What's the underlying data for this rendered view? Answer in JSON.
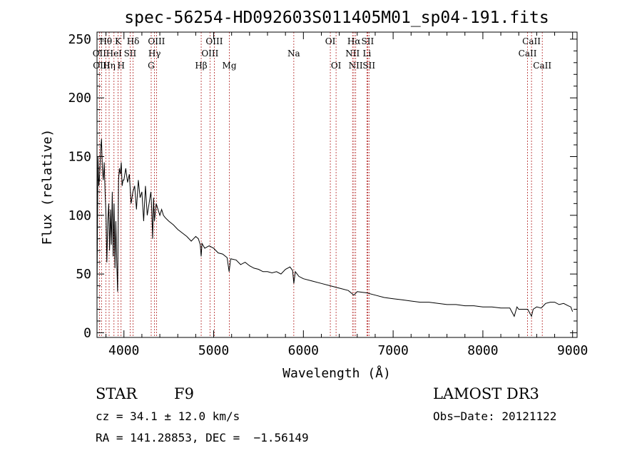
{
  "chart_data": {
    "type": "line",
    "title": "spec-56254-HD092603S011405M01_sp04-191.fits",
    "xlabel": "Wavelength (Å)",
    "ylabel": "Flux (relative)",
    "xlim": [
      3700,
      9050
    ],
    "ylim": [
      -4,
      256
    ],
    "x_ticks": [
      4000,
      5000,
      6000,
      7000,
      8000,
      9000
    ],
    "y_ticks": [
      0,
      50,
      100,
      150,
      200,
      250
    ],
    "x_tick_labels": [
      "4000",
      "5000",
      "6000",
      "7000",
      "8000",
      "9000"
    ],
    "y_tick_labels": [
      "0",
      "50",
      "100",
      "150",
      "200",
      "250"
    ],
    "line_color": "#000000",
    "marker_color": "#b22222",
    "series": [
      {
        "name": "spectrum",
        "x": [
          3700,
          3710,
          3720,
          3730,
          3740,
          3750,
          3760,
          3770,
          3780,
          3790,
          3800,
          3810,
          3820,
          3830,
          3840,
          3850,
          3860,
          3870,
          3880,
          3890,
          3900,
          3910,
          3920,
          3930,
          3940,
          3950,
          3960,
          3970,
          3980,
          3990,
          4000,
          4020,
          4040,
          4060,
          4080,
          4100,
          4120,
          4140,
          4160,
          4180,
          4200,
          4220,
          4240,
          4260,
          4280,
          4300,
          4310,
          4320,
          4330,
          4340,
          4360,
          4380,
          4400,
          4420,
          4440,
          4460,
          4500,
          4550,
          4600,
          4650,
          4700,
          4750,
          4800,
          4830,
          4850,
          4861,
          4870,
          4900,
          4950,
          5000,
          5050,
          5100,
          5150,
          5172,
          5190,
          5250,
          5300,
          5350,
          5400,
          5450,
          5500,
          5550,
          5600,
          5650,
          5700,
          5750,
          5800,
          5850,
          5880,
          5893,
          5910,
          5950,
          6000,
          6100,
          6200,
          6300,
          6400,
          6500,
          6563,
          6600,
          6700,
          6800,
          6900,
          7000,
          7100,
          7200,
          7300,
          7400,
          7500,
          7600,
          7700,
          7800,
          7900,
          8000,
          8100,
          8200,
          8300,
          8350,
          8380,
          8400,
          8450,
          8500,
          8542,
          8560,
          8600,
          8650,
          8700,
          8750,
          8800,
          8850,
          8900,
          8950,
          8980,
          9000
        ],
        "y": [
          30,
          150,
          125,
          135,
          155,
          165,
          140,
          130,
          145,
          120,
          100,
          60,
          95,
          110,
          70,
          105,
          75,
          120,
          65,
          110,
          55,
          95,
          60,
          35,
          130,
          140,
          135,
          145,
          125,
          130,
          130,
          140,
          128,
          135,
          110,
          120,
          125,
          105,
          130,
          115,
          120,
          95,
          125,
          100,
          110,
          120,
          105,
          80,
          115,
          95,
          110,
          105,
          100,
          105,
          100,
          98,
          95,
          92,
          88,
          85,
          82,
          78,
          82,
          80,
          75,
          65,
          76,
          72,
          74,
          72,
          68,
          67,
          64,
          52,
          63,
          62,
          58,
          60,
          57,
          55,
          54,
          52,
          52,
          51,
          52,
          50,
          54,
          56,
          53,
          42,
          52,
          48,
          46,
          44,
          42,
          40,
          38,
          36,
          32,
          35,
          34,
          32,
          30,
          29,
          28,
          27,
          26,
          26,
          25,
          24,
          24,
          23,
          23,
          22,
          22,
          21,
          21,
          14,
          22,
          20,
          20,
          20,
          14,
          20,
          22,
          21,
          25,
          26,
          26,
          24,
          25,
          23,
          22,
          18
        ]
      }
    ],
    "lines": [
      {
        "label": "Hθ",
        "wavelength": 3798,
        "row": 1
      },
      {
        "label": "OII",
        "wavelength": 3727,
        "row": 2
      },
      {
        "label": "OIII",
        "wavelength": 3750,
        "row": 3
      },
      {
        "label": "Hη",
        "wavelength": 3835,
        "row": 3
      },
      {
        "label": "HeI",
        "wavelength": 3889,
        "row": 2
      },
      {
        "label": "K",
        "wavelength": 3934,
        "row": 1
      },
      {
        "label": "H",
        "wavelength": 3968,
        "row": 3
      },
      {
        "label": "SII",
        "wavelength": 4069,
        "row": 2
      },
      {
        "label": "Hδ",
        "wavelength": 4102,
        "row": 1
      },
      {
        "label": "G",
        "wavelength": 4304,
        "row": 3
      },
      {
        "label": "Hγ",
        "wavelength": 4341,
        "row": 2
      },
      {
        "label": "OIII",
        "wavelength": 4363,
        "row": 1
      },
      {
        "label": "Hβ",
        "wavelength": 4861,
        "row": 3
      },
      {
        "label": "OIII",
        "wavelength": 4959,
        "row": 2
      },
      {
        "label": "OIII",
        "wavelength": 5007,
        "row": 1
      },
      {
        "label": "Mg",
        "wavelength": 5175,
        "row": 3
      },
      {
        "label": "Na",
        "wavelength": 5893,
        "row": 2
      },
      {
        "label": "OI",
        "wavelength": 6300,
        "row": 1
      },
      {
        "label": "OI",
        "wavelength": 6364,
        "row": 3
      },
      {
        "label": "NII",
        "wavelength": 6548,
        "row": 2
      },
      {
        "label": "Hα",
        "wavelength": 6563,
        "row": 1
      },
      {
        "label": "NII",
        "wavelength": 6583,
        "row": 3
      },
      {
        "label": "Li",
        "wavelength": 6708,
        "row": 2
      },
      {
        "label": "SII",
        "wavelength": 6716,
        "row": 1
      },
      {
        "label": "SII",
        "wavelength": 6731,
        "row": 3
      },
      {
        "label": "CaII",
        "wavelength": 8498,
        "row": 2
      },
      {
        "label": "CaII",
        "wavelength": 8542,
        "row": 1
      },
      {
        "label": "CaII",
        "wavelength": 8662,
        "row": 3
      }
    ]
  },
  "info": {
    "object_class": "STAR",
    "subclass": "F9",
    "cz": "cz = 34.1 ± 12.0 km/s",
    "coords": "RA = 141.28853, DEC =  −1.56149",
    "survey": "LAMOST DR3",
    "obs_date": "Obs−Date: 20121122"
  }
}
